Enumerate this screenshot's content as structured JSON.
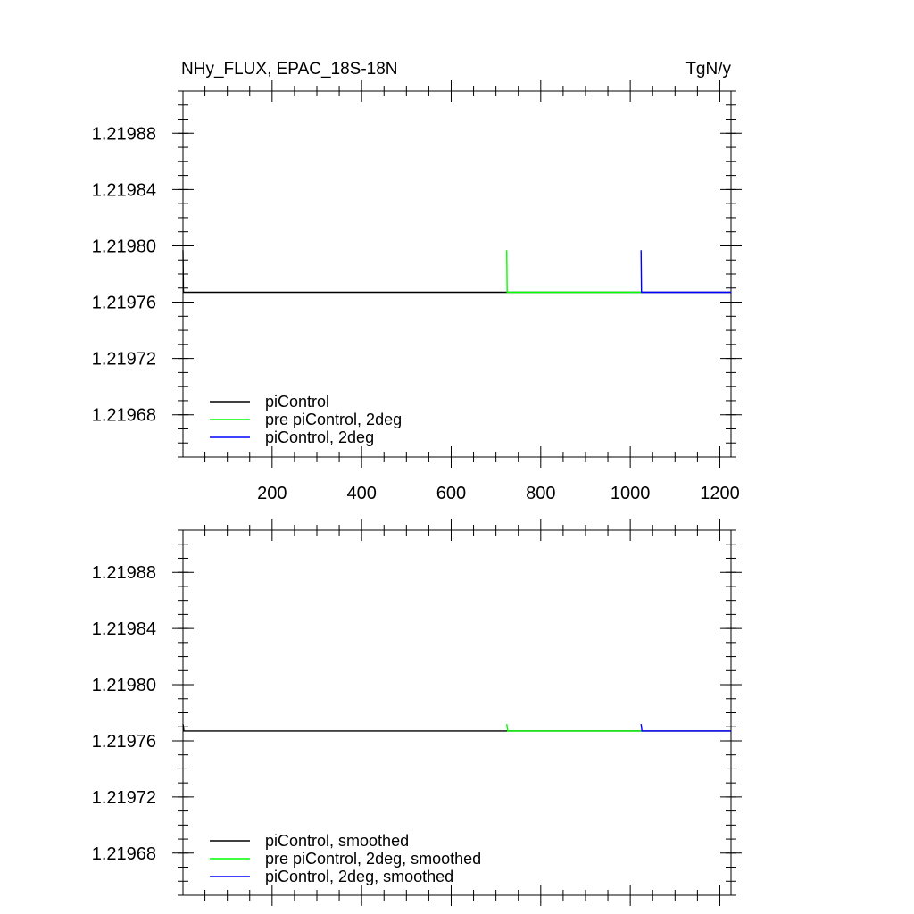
{
  "chart_data": [
    {
      "type": "line",
      "title_left": "NHy_FLUX, EPAC_18S-18N",
      "title_right": "TgN/y",
      "xlim": [
        1,
        1225
      ],
      "ylim": [
        1.21965,
        1.21991
      ],
      "x_ticks": [
        200,
        400,
        600,
        800,
        1000,
        1200
      ],
      "x_tick_labels": [
        "200",
        "400",
        "600",
        "800",
        "1000",
        "1200"
      ],
      "y_ticks": [
        1.21968,
        1.21972,
        1.21976,
        1.2198,
        1.21984,
        1.21988
      ],
      "y_tick_labels": [
        "1.21968",
        "1.21972",
        "1.21976",
        "1.21980",
        "1.21984",
        "1.21988"
      ],
      "legend_position": "bottom-left",
      "series": [
        {
          "name": "piControl",
          "color": "#000000",
          "x": [
            1,
            2,
            1225
          ],
          "y": [
            1.219797,
            1.219767,
            1.219767
          ]
        },
        {
          "name": "pre piControl, 2deg",
          "color": "#00ff00",
          "x": [
            724,
            725,
            1025
          ],
          "y": [
            1.219797,
            1.219767,
            1.219767
          ]
        },
        {
          "name": "piControl, 2deg",
          "color": "#0000ff",
          "x": [
            1024,
            1025,
            1225
          ],
          "y": [
            1.219797,
            1.219767,
            1.219767
          ]
        }
      ]
    },
    {
      "type": "line",
      "xlim": [
        1,
        1225
      ],
      "ylim": [
        1.21965,
        1.21991
      ],
      "x_ticks": [
        200,
        400,
        600,
        800,
        1000,
        1200
      ],
      "y_ticks": [
        1.21968,
        1.21972,
        1.21976,
        1.2198,
        1.21984,
        1.21988
      ],
      "y_tick_labels": [
        "1.21968",
        "1.21972",
        "1.21976",
        "1.21980",
        "1.21984",
        "1.21988"
      ],
      "legend_position": "bottom-left",
      "series": [
        {
          "name": "piControl, smoothed",
          "color": "#000000",
          "x": [
            1,
            2,
            3,
            1225
          ],
          "y": [
            1.219772,
            1.21977,
            1.219767,
            1.219767
          ]
        },
        {
          "name": "pre piControl, 2deg, smoothed",
          "color": "#00ff00",
          "x": [
            724,
            725,
            726,
            1025
          ],
          "y": [
            1.219772,
            1.21977,
            1.219767,
            1.219767
          ]
        },
        {
          "name": "piControl, 2deg, smoothed",
          "color": "#0000ff",
          "x": [
            1024,
            1025,
            1026,
            1225
          ],
          "y": [
            1.219772,
            1.21977,
            1.219767,
            1.219767
          ]
        }
      ]
    }
  ]
}
